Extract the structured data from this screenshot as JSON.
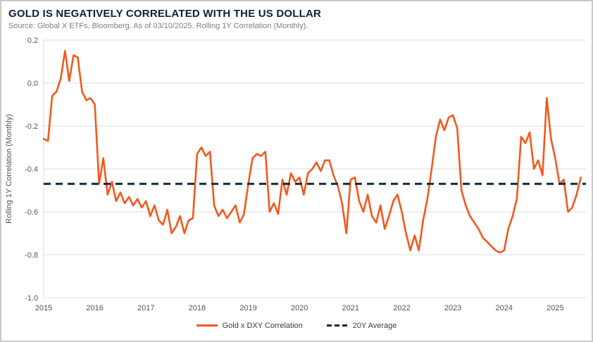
{
  "header": {
    "title": "GOLD IS NEGATIVELY CORRELATED WITH THE US DOLLAR",
    "source": "Source: Global X ETFs, Bloomberg. As of 03/10/2025. Rolling 1Y Correlation (Monthly)."
  },
  "colors": {
    "line_orange": "#F4581C",
    "average_navy": "#0E2A3C",
    "grid_gray": "#DCDCDC",
    "title_navy": "#0B2239"
  },
  "chart_data": {
    "type": "line",
    "title": "GOLD IS NEGATIVELY CORRELATED WITH THE US DOLLAR",
    "subtitle": "Source: Global X ETFs, Bloomberg. As of 03/10/2025. Rolling 1Y Correlation (Monthly).",
    "ylabel": "Rolling 1Y Correlation (Monthly)",
    "xlabel": "",
    "ylim": [
      -1.0,
      0.2
    ],
    "xlim": [
      2015,
      2025.6
    ],
    "yticks": [
      0.2,
      0.0,
      -0.2,
      -0.4,
      -0.6,
      -0.8,
      -1.0
    ],
    "ytick_labels": [
      "0.2",
      "0.0",
      "-0.2",
      "-0.4",
      "-0.6",
      "-0.8",
      "-1.0"
    ],
    "xticks": [
      2015,
      2016,
      2017,
      2018,
      2019,
      2020,
      2021,
      2022,
      2023,
      2024,
      2025
    ],
    "xtick_labels": [
      "2015",
      "2016",
      "2017",
      "2018",
      "2019",
      "2020",
      "2021",
      "2022",
      "2023",
      "2024",
      "2025"
    ],
    "grid": "horizontal",
    "legend_position": "bottom",
    "series": [
      {
        "name": "Gold x DXY Correlation",
        "color": "#F4581C",
        "style": "solid",
        "frequency": "monthly",
        "start_x": 2015,
        "values": [
          -0.26,
          -0.27,
          -0.06,
          -0.04,
          0.02,
          0.15,
          0.01,
          0.13,
          0.12,
          -0.04,
          -0.08,
          -0.07,
          -0.1,
          -0.47,
          -0.35,
          -0.52,
          -0.46,
          -0.55,
          -0.51,
          -0.56,
          -0.53,
          -0.57,
          -0.54,
          -0.58,
          -0.55,
          -0.62,
          -0.57,
          -0.64,
          -0.66,
          -0.59,
          -0.7,
          -0.67,
          -0.62,
          -0.7,
          -0.64,
          -0.63,
          -0.33,
          -0.3,
          -0.34,
          -0.32,
          -0.57,
          -0.62,
          -0.59,
          -0.63,
          -0.6,
          -0.57,
          -0.65,
          -0.61,
          -0.47,
          -0.35,
          -0.33,
          -0.34,
          -0.32,
          -0.6,
          -0.56,
          -0.61,
          -0.45,
          -0.52,
          -0.42,
          -0.46,
          -0.44,
          -0.52,
          -0.42,
          -0.4,
          -0.37,
          -0.41,
          -0.36,
          -0.36,
          -0.43,
          -0.48,
          -0.56,
          -0.7,
          -0.45,
          -0.44,
          -0.55,
          -0.6,
          -0.52,
          -0.62,
          -0.65,
          -0.57,
          -0.68,
          -0.62,
          -0.55,
          -0.52,
          -0.6,
          -0.7,
          -0.78,
          -0.71,
          -0.78,
          -0.64,
          -0.54,
          -0.4,
          -0.25,
          -0.17,
          -0.22,
          -0.16,
          -0.15,
          -0.21,
          -0.5,
          -0.57,
          -0.62,
          -0.65,
          -0.68,
          -0.72,
          -0.74,
          -0.76,
          -0.78,
          -0.79,
          -0.78,
          -0.68,
          -0.62,
          -0.54,
          -0.25,
          -0.28,
          -0.23,
          -0.4,
          -0.36,
          -0.43,
          -0.07,
          -0.26,
          -0.35,
          -0.47,
          -0.45,
          -0.6,
          -0.58,
          -0.52,
          -0.44
        ]
      },
      {
        "name": "20Y Average",
        "color": "#0E2A3C",
        "style": "dashed",
        "value": -0.47
      }
    ]
  }
}
